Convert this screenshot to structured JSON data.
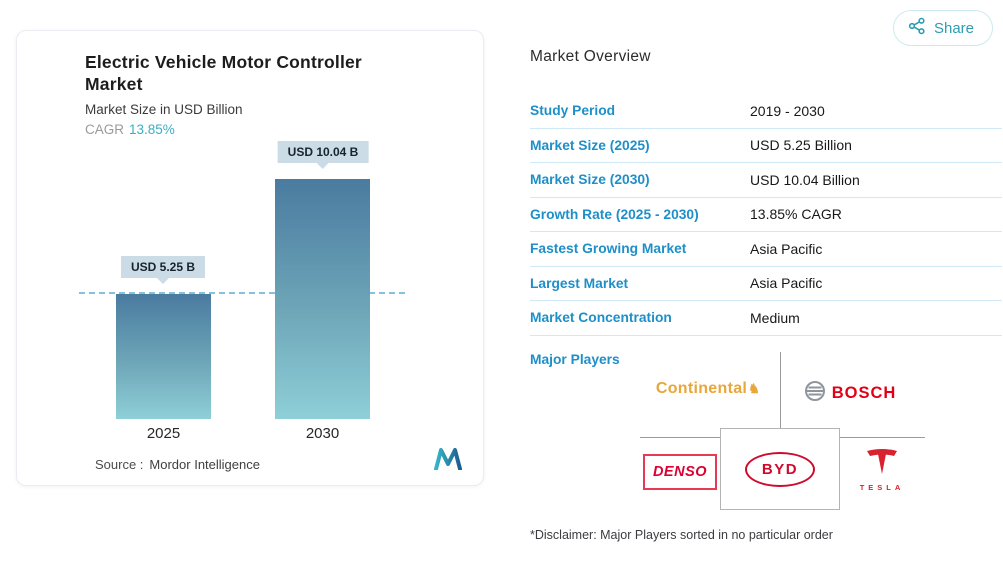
{
  "share": {
    "label": "Share",
    "icon": "share-network-icon"
  },
  "card": {
    "title": "Electric Vehicle Motor Controller Market",
    "subtitle": "Market Size in USD Billion",
    "cagr_label": "CAGR",
    "cagr_value": "13.85%",
    "source_label": "Source :",
    "source_value": "Mordor Intelligence",
    "logo": "mordor-intelligence-logo"
  },
  "chart_data": {
    "type": "bar",
    "title": "Electric Vehicle Motor Controller Market",
    "ylabel": "Market Size in USD Billion",
    "xlabel": "",
    "categories": [
      "2025",
      "2030"
    ],
    "values": [
      5.25,
      10.04
    ],
    "bar_labels": [
      "USD 5.25 B",
      "USD 10.04 B"
    ],
    "cagr": "13.85%",
    "reference_line_value": 5.25,
    "ylim": [
      0,
      10.04
    ],
    "grid": false,
    "legend": false
  },
  "overview": {
    "heading": "Market Overview",
    "rows": [
      {
        "label": "Study Period",
        "value": "2019 - 2030"
      },
      {
        "label": "Market Size (2025)",
        "value": "USD 5.25 Billion"
      },
      {
        "label": "Market Size (2030)",
        "value": "USD 10.04 Billion"
      },
      {
        "label": "Growth Rate (2025 - 2030)",
        "value": "13.85% CAGR"
      },
      {
        "label": "Fastest Growing Market",
        "value": "Asia Pacific"
      },
      {
        "label": "Largest Market",
        "value": "Asia Pacific"
      },
      {
        "label": "Market Concentration",
        "value": "Medium"
      }
    ],
    "major_players_label": "Major Players",
    "players": [
      {
        "name": "Continental"
      },
      {
        "name": "BOSCH"
      },
      {
        "name": "DENSO"
      },
      {
        "name": "BYD"
      },
      {
        "name": "TESLA"
      }
    ],
    "disclaimer": "*Disclaimer: Major Players sorted in no particular order"
  },
  "colors": {
    "accent_blue": "#1e8fc8",
    "teal": "#3aaec5",
    "bar_top": "#4a7ba0",
    "bar_bottom": "#8ecfd8",
    "label_box": "#ccdce6",
    "row_divider": "#cfe9f7",
    "continental_gold": "#e9a63b",
    "bosch_red": "#e30016",
    "denso_red": "#dc0032",
    "byd_red": "#cf0a2c",
    "tesla_red": "#d8222e"
  }
}
